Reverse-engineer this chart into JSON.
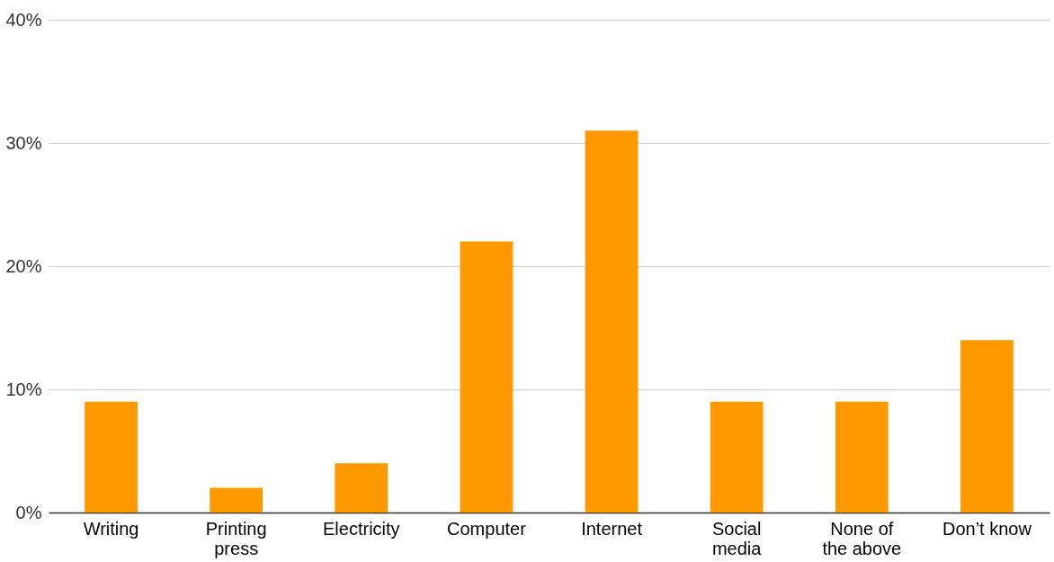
{
  "chart_data": {
    "type": "bar",
    "categories": [
      "Writing",
      "Printing press",
      "Electricity",
      "Computer",
      "Internet",
      "Social media",
      "None of the above",
      "Don’t know"
    ],
    "values": [
      9,
      2,
      4,
      22,
      31,
      9,
      9,
      14
    ],
    "color": "#ff9900",
    "ylim": [
      0,
      40
    ],
    "yticks": [
      {
        "value": 0,
        "label": "0%"
      },
      {
        "value": 10,
        "label": "10%"
      },
      {
        "value": 20,
        "label": "20%"
      },
      {
        "value": 30,
        "label": "30%"
      },
      {
        "value": 40,
        "label": "40%"
      }
    ],
    "grid": "y"
  }
}
